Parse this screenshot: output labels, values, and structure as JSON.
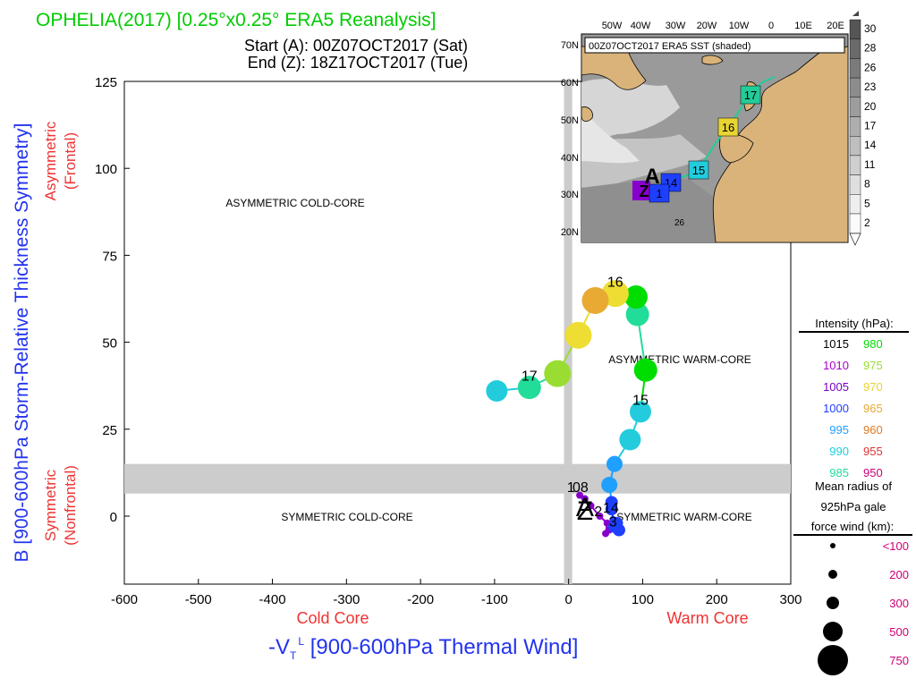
{
  "header": {
    "title": "OPHELIA(2017) [0.25°x0.25° ERA5 Reanalysis]",
    "start": "Start (A): 00Z07OCT2017 (Sat)",
    "end": "End (Z): 18Z17OCT2017 (Tue)",
    "title_color": "#00cc00"
  },
  "chart_data": {
    "type": "scatter",
    "title": "OPHELIA(2017) [0.25°x0.25° ERA5 Reanalysis]",
    "xlabel_main": "-V",
    "xlabel_sub": "T",
    "xlabel_sup": "L",
    "xlabel_rest": " [900-600hPa Thermal Wind]",
    "ylabel": "B [900-600hPa Storm-Relative Thickness Symmetry]",
    "xlim": [
      -600,
      300
    ],
    "ylim": [
      -20,
      125
    ],
    "x_ticks": [
      -600,
      -500,
      -400,
      -300,
      -200,
      -100,
      0,
      100,
      200,
      300
    ],
    "y_ticks": [
      0,
      25,
      50,
      75,
      100,
      125
    ],
    "x_zero_band": 10,
    "y_zero_band": 10,
    "y_side_labels": [
      {
        "top": "Asymmetric",
        "bottom": "(Frontal)"
      },
      {
        "top": "Symmetric",
        "bottom": "(Nonfrontal)"
      }
    ],
    "x_side_labels": {
      "left": "Cold Core",
      "right": "Warm Core"
    },
    "quadrants": {
      "asym_cold": "ASYMMETRIC COLD-CORE",
      "asym_warm": "ASYMMETRIC WARM-CORE",
      "sym_cold": "SYMMETRIC COLD-CORE",
      "sym_warm": "SYMMETRIC WARM-CORE"
    },
    "track": [
      {
        "x": 15,
        "y": 6,
        "p": 1006,
        "color": "#8800cc"
      },
      {
        "x": 22,
        "y": 5,
        "p": 1006,
        "color": "#8800cc"
      },
      {
        "x": 30,
        "y": 3,
        "p": 1004,
        "color": "#8800cc"
      },
      {
        "x": 42,
        "y": 0,
        "p": 1002,
        "color": "#8800cc"
      },
      {
        "x": 52,
        "y": -2,
        "p": 1002,
        "color": "#8800cc"
      },
      {
        "x": 50,
        "y": -5,
        "p": 1003,
        "color": "#8800cc"
      },
      {
        "x": 55,
        "y": -4,
        "p": 1002,
        "color": "#8800cc"
      },
      {
        "x": 60,
        "y": -1,
        "p": 1000,
        "color": "#1f3fff"
      },
      {
        "x": 65,
        "y": -2,
        "p": 998,
        "color": "#1f3fff"
      },
      {
        "x": 68,
        "y": -4,
        "p": 996,
        "color": "#1f3fff"
      },
      {
        "x": 62,
        "y": -3,
        "p": 997,
        "color": "#1f3fff"
      },
      {
        "x": 58,
        "y": 2,
        "p": 997,
        "color": "#1f3fff"
      },
      {
        "x": 58,
        "y": 4,
        "p": 996,
        "color": "#1f3fff"
      },
      {
        "x": 55,
        "y": 9,
        "p": 995,
        "color": "#1fa0ff"
      },
      {
        "x": 62,
        "y": 15,
        "p": 994,
        "color": "#1fa0ff"
      },
      {
        "x": 83,
        "y": 22,
        "p": 990,
        "color": "#22ccdd"
      },
      {
        "x": 97,
        "y": 30,
        "p": 988,
        "color": "#22ccdd"
      },
      {
        "x": 104,
        "y": 42,
        "p": 980,
        "color": "#00dd00"
      },
      {
        "x": 93,
        "y": 58,
        "p": 985,
        "color": "#22dd99"
      },
      {
        "x": 91,
        "y": 63,
        "p": 980,
        "color": "#00dd00"
      },
      {
        "x": 63,
        "y": 64,
        "p": 970,
        "color": "#eedd33"
      },
      {
        "x": 36,
        "y": 62,
        "p": 965,
        "color": "#e8aa33"
      },
      {
        "x": 13,
        "y": 52,
        "p": 970,
        "color": "#eedd33"
      },
      {
        "x": -15,
        "y": 41,
        "p": 975,
        "color": "#99dd33"
      },
      {
        "x": -53,
        "y": 37,
        "p": 985,
        "color": "#22dd99"
      },
      {
        "x": -97,
        "y": 36,
        "p": 990,
        "color": "#22ccdd"
      }
    ],
    "track_labels": [
      {
        "text": "16",
        "x": 63,
        "y": 66
      },
      {
        "text": "15",
        "x": 97,
        "y": 32
      },
      {
        "text": "17",
        "x": -53,
        "y": 39
      },
      {
        "text": "14",
        "x": 57,
        "y": 1
      },
      {
        "text": "1",
        "x": 3,
        "y": 7
      },
      {
        "text": "08",
        "x": 16,
        "y": 7
      },
      {
        "text": "2",
        "x": 40,
        "y": 0
      },
      {
        "text": "3",
        "x": 60,
        "y": -3
      },
      {
        "text": "A",
        "x": 22,
        "y": 0,
        "big": true
      },
      {
        "text": "Z",
        "x": 22,
        "y": -1,
        "big": true
      }
    ]
  },
  "legend": {
    "intensity_title": "Intensity (hPa):",
    "intensity": [
      [
        {
          "v": "1015",
          "c": "#000000"
        },
        {
          "v": "980",
          "c": "#00dd00"
        }
      ],
      [
        {
          "v": "1010",
          "c": "#aa00cc"
        },
        {
          "v": "975",
          "c": "#99dd33"
        }
      ],
      [
        {
          "v": "1005",
          "c": "#7700cc"
        },
        {
          "v": "970",
          "c": "#e8d433"
        }
      ],
      [
        {
          "v": "1000",
          "c": "#1f3fff"
        },
        {
          "v": "965",
          "c": "#e8aa33"
        }
      ],
      [
        {
          "v": "995",
          "c": "#1fa0ff"
        },
        {
          "v": "960",
          "c": "#e07a22"
        }
      ],
      [
        {
          "v": "990",
          "c": "#22ccdd"
        },
        {
          "v": "955",
          "c": "#dd3333"
        }
      ],
      [
        {
          "v": "985",
          "c": "#22dd99"
        },
        {
          "v": "950",
          "c": "#cc0077"
        }
      ]
    ],
    "radius_title_1": "Mean radius of",
    "radius_title_2": "925hPa gale",
    "radius_title_3": "force wind (km):",
    "radius": [
      {
        "label": "<100",
        "size": 1
      },
      {
        "label": "200",
        "size": 2
      },
      {
        "label": "300",
        "size": 3
      },
      {
        "label": "500",
        "size": 4
      },
      {
        "label": "750",
        "size": 5
      }
    ],
    "radius_color": "#cc0077"
  },
  "inset": {
    "title": "00Z07OCT2017 ERA5 SST (shaded)",
    "lon_ticks": [
      "50W",
      "40W",
      "30W",
      "20W",
      "10W",
      "0",
      "10E",
      "20E"
    ],
    "lat_ticks": [
      "70N",
      "60N",
      "50N",
      "40N",
      "30N",
      "20N"
    ],
    "colorbar": [
      "30",
      "28",
      "26",
      "23",
      "20",
      "17",
      "14",
      "11",
      "8",
      "5",
      "2"
    ],
    "sst_label": "26",
    "boxes": [
      {
        "text": "14",
        "color": "#1f3fff"
      },
      {
        "text": "15",
        "color": "#22ccdd"
      },
      {
        "text": "16",
        "color": "#e8d433"
      },
      {
        "text": "17",
        "color": "#22cc99"
      },
      {
        "text": "1",
        "color": "#1f3fff"
      }
    ],
    "start_letter": "A",
    "end_letter": "Z"
  }
}
